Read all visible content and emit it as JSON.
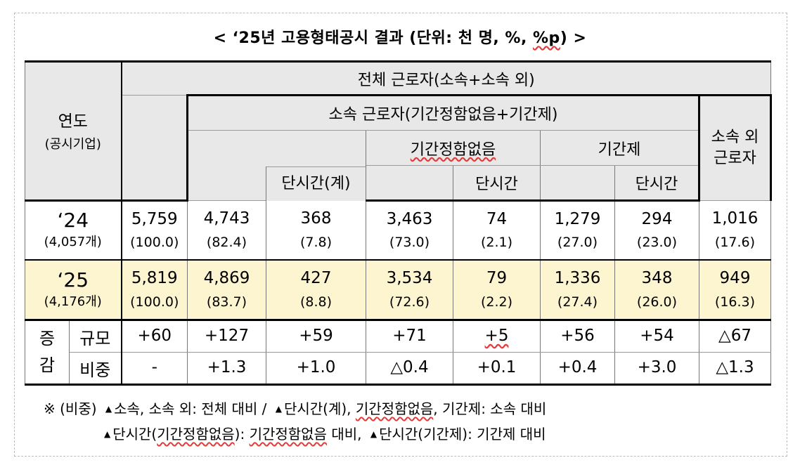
{
  "title": {
    "prefix": "< ‘25년 고용형태공시 결과 (단위: 천 명, %, ",
    "unit_pp": "%p",
    "suffix": ") >"
  },
  "header": {
    "year_label": "연도",
    "year_sub": "(공시기업)",
    "total_workers": "전체 근로자(소속+소속 외)",
    "affiliated_workers": "소속 근로자(기간정함없음+기간제)",
    "non_affiliated_line1": "소속 외",
    "non_affiliated_line2": "근로자",
    "indefinite": "기간정함없음",
    "fixed_term": "기간제",
    "part_time_total": "단시간(계)",
    "part_time_indef": "단시간",
    "part_time_fixed": "단시간"
  },
  "rows": [
    {
      "year": "‘24",
      "companies": "(4,057개)",
      "values": [
        "5,759",
        "4,743",
        "368",
        "3,463",
        "74",
        "1,279",
        "294",
        "1,016"
      ],
      "shares": [
        "(100.0)",
        "(82.4)",
        "(7.8)",
        "(73.0)",
        "(2.1)",
        "(27.0)",
        "(23.0)",
        "(17.6)"
      ]
    },
    {
      "year": "‘25",
      "companies": "(4,176개)",
      "values": [
        "5,819",
        "4,869",
        "427",
        "3,534",
        "79",
        "1,336",
        "348",
        "949"
      ],
      "shares": [
        "(100.0)",
        "(83.7)",
        "(8.8)",
        "(72.6)",
        "(2.2)",
        "(27.4)",
        "(26.0)",
        "(16.3)"
      ]
    }
  ],
  "change": {
    "label_top": "증",
    "label_bottom": "감",
    "scale_label": "규모",
    "ratio_label": "비중",
    "scale": [
      "+60",
      "+127",
      "+59",
      "+71",
      "+5",
      "+56",
      "+54",
      "△67"
    ],
    "ratio": [
      "-",
      "+1.3",
      "+1.0",
      "△0.4",
      "+0.1",
      "+0.4",
      "+3.0",
      "△1.3"
    ]
  },
  "notes": {
    "mark": "※ (비중)",
    "line1_a": "소속, 소속 외: 전체 대비 /",
    "line1_b_pre": "단시간(계), ",
    "line1_b_wavy": "기간정함없음",
    "line1_b_post": ", 기간제: 소속 대비",
    "line2_a_pre": "단시간(",
    "line2_a_wavy1": "기간정함없음",
    "line2_a_mid": "): ",
    "line2_a_wavy2": "기간정함없음",
    "line2_a_post": " 대비,",
    "line2_b": "단시간(기간제): 기간제 대비",
    "triangle": "▲"
  },
  "colors": {
    "header_gray": "#e8e8e8",
    "row25_yellow": "#fcf5d0",
    "wavy_underline": "#e23b3b"
  }
}
